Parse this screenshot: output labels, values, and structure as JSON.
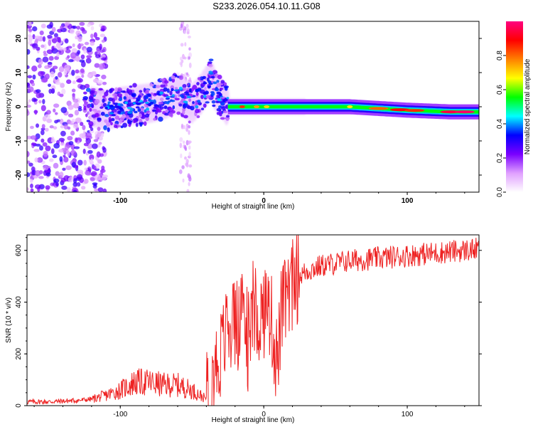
{
  "title": "S233.2026.054.10.11.G08",
  "chart_data": [
    {
      "type": "heatmap",
      "xlabel": "Height of straight line (km)",
      "ylabel": "Frequency (Hz)",
      "xlim": [
        -165,
        150
      ],
      "ylim": [
        -25,
        25
      ],
      "xticks": [
        "-100",
        "0",
        "100"
      ],
      "yticks": [
        "-20",
        "-10",
        "0",
        "10",
        "20"
      ],
      "ridge": {
        "x": [
          -165,
          -120,
          -110,
          -100,
          -90,
          -80,
          -70,
          -60,
          -50,
          -45,
          -40,
          -37,
          -33,
          -30,
          -25,
          -20,
          -10,
          0,
          10,
          20,
          30,
          60,
          100,
          130,
          150
        ],
        "freq": [
          0,
          0,
          -1,
          0,
          0.5,
          1,
          2,
          4,
          1,
          3,
          6,
          8,
          4,
          3,
          0,
          0,
          0,
          0,
          0,
          0,
          0,
          0,
          -1,
          -1.5,
          -1.5
        ]
      },
      "colorbar": {
        "label": "Normalized spectral amplitude",
        "range": [
          0,
          1
        ],
        "ticks": [
          "0.0",
          "0.2",
          "0.4",
          "0.6",
          "0.8"
        ],
        "colors": [
          "#ffffff",
          "#e0a0ff",
          "#7a00ff",
          "#0000ff",
          "#00ffff",
          "#00ff00",
          "#ffff00",
          "#ff8000",
          "#ff0000",
          "#ff0080"
        ]
      }
    },
    {
      "type": "line",
      "xlabel": "Height of straight line (km)",
      "ylabel": "SNR (10 * v/v)",
      "xlim": [
        -165,
        150
      ],
      "ylim": [
        0,
        660
      ],
      "xticks": [
        "-100",
        "0",
        "100"
      ],
      "yticks": [
        "0",
        "200",
        "400",
        "600"
      ],
      "color": "#ee2222",
      "series": [
        {
          "name": "SNR",
          "x": [
            -165,
            -150,
            -130,
            -120,
            -110,
            -100,
            -90,
            -80,
            -70,
            -60,
            -50,
            -40,
            -35,
            -30,
            -25,
            -20,
            -15,
            -10,
            -8,
            -5,
            0,
            5,
            8,
            10,
            12,
            15,
            20,
            25,
            30,
            40,
            50,
            60,
            80,
            100,
            120,
            140,
            150
          ],
          "y": [
            15,
            15,
            20,
            25,
            40,
            60,
            90,
            90,
            80,
            80,
            60,
            25,
            130,
            200,
            300,
            320,
            300,
            200,
            380,
            330,
            360,
            350,
            200,
            180,
            350,
            400,
            470,
            500,
            520,
            540,
            550,
            560,
            570,
            580,
            590,
            600,
            605
          ]
        }
      ]
    }
  ]
}
